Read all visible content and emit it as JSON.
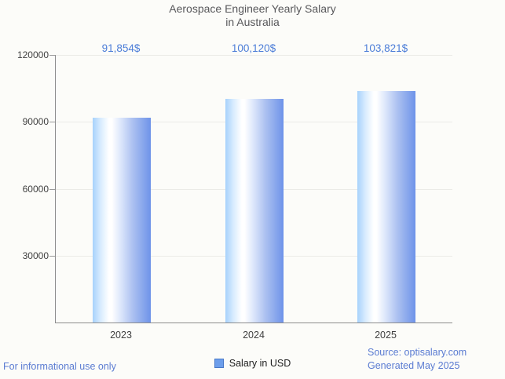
{
  "title": {
    "line1": "Aerospace Engineer Yearly Salary",
    "line2": "in Australia"
  },
  "chart_data": {
    "type": "bar",
    "title": "Aerospace Engineer Yearly Salary in Australia",
    "categories": [
      "2023",
      "2024",
      "2025"
    ],
    "values": [
      91854,
      100120,
      103821
    ],
    "value_labels": [
      "91,854$",
      "100,120$",
      "103,821$"
    ],
    "series_name": "Salary in USD",
    "xlabel": "",
    "ylabel": "",
    "ylim": [
      0,
      120000
    ],
    "yticks": [
      30000,
      60000,
      90000,
      120000
    ],
    "ytick_labels": [
      "30000",
      "60000",
      "90000",
      "120000"
    ],
    "grid": true,
    "legend": {
      "label": "Salary in USD",
      "position": "bottom"
    }
  },
  "footer": {
    "left": "For informational use only",
    "source_line": "Source: optisalary.com",
    "generated_line": "Generated May 2025"
  },
  "colors": {
    "background": "#fcfcf9",
    "title_text": "#58585b",
    "axis_line": "#8c8c8c",
    "grid_line": "#ebebe7",
    "tick_text": "#3f3f3f",
    "value_label_text": "#4c7dd8",
    "footer_text": "#5b7cd2",
    "legend_marker_fill": "#6d9eeb",
    "legend_marker_border": "#4878c8",
    "bar_gradient_left": "#a7d2fc",
    "bar_gradient_mid": "#ffffff",
    "bar_gradient_right": "#6e93e9"
  }
}
